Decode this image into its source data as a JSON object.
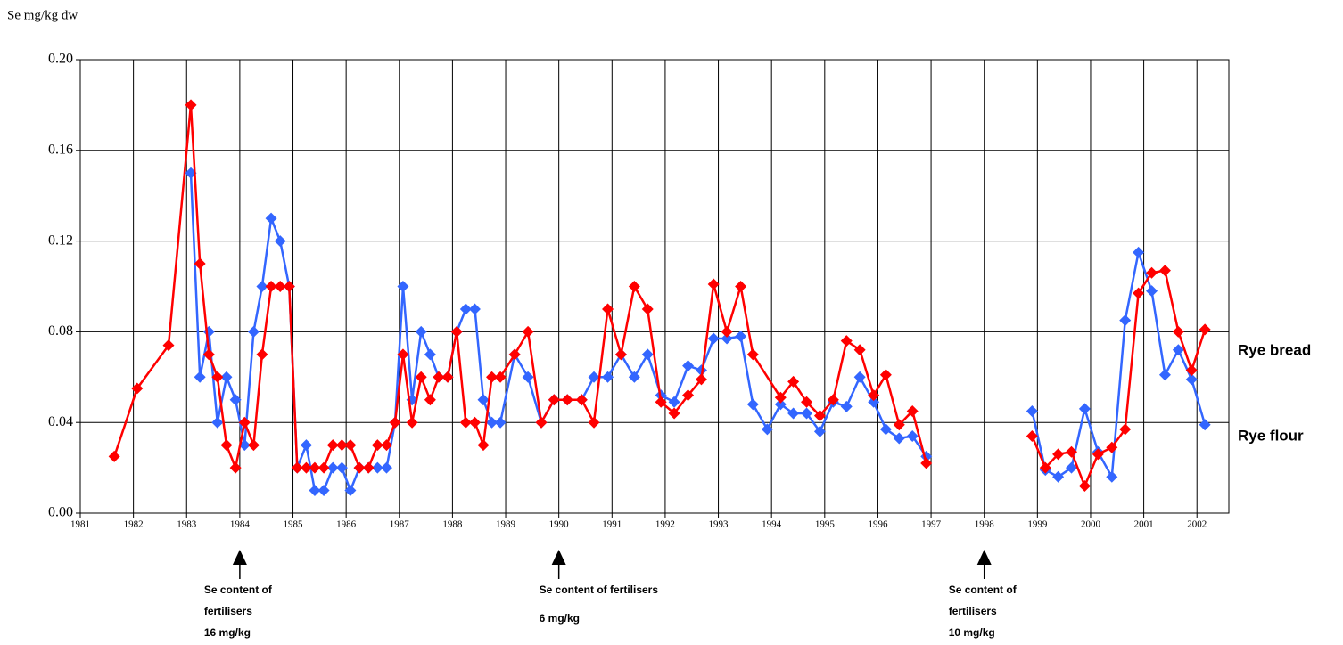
{
  "chart_data": {
    "type": "line",
    "y_axis_label": "Se mg/kg dw",
    "xlim": [
      1981,
      2002.6
    ],
    "xticks": [
      1981,
      1982,
      1983,
      1984,
      1985,
      1986,
      1987,
      1988,
      1989,
      1990,
      1991,
      1992,
      1993,
      1994,
      1995,
      1996,
      1997,
      1998,
      1999,
      2000,
      2001,
      2002
    ],
    "ylim": [
      0,
      0.2
    ],
    "yticks": [
      {
        "value": 0,
        "label": "0.00"
      },
      {
        "value": 0.04,
        "label": "0.04"
      },
      {
        "value": 0.08,
        "label": "0.08"
      },
      {
        "value": 0.12,
        "label": "0.12"
      },
      {
        "value": 0.16,
        "label": "0.16"
      },
      {
        "value": 0.2,
        "label": "0.20"
      }
    ],
    "grid": true,
    "series": [
      {
        "name": "Rye flour",
        "color": "#3366ff",
        "x": [
          1983.08,
          1983.25,
          1983.42,
          1983.58,
          1983.75,
          1983.92,
          1984.09,
          1984.26,
          1984.42,
          1984.59,
          1984.76,
          1984.93,
          1985.08,
          1985.25,
          1985.41,
          1985.58,
          1985.75,
          1985.92,
          1986.08,
          1986.25,
          1986.42,
          1986.59,
          1986.76,
          1986.92,
          1987.07,
          1987.24,
          1987.41,
          1987.58,
          1987.74,
          1987.91,
          1988.08,
          1988.25,
          1988.42,
          1988.58,
          1988.74,
          1988.9,
          1989.17,
          1989.42,
          1989.67,
          1989.91,
          1990.16,
          1990.43,
          1990.66,
          1990.92,
          1991.17,
          1991.42,
          1991.67,
          1991.92,
          1992.17,
          1992.43,
          1992.68,
          1992.91,
          1993.16,
          1993.42,
          1993.65,
          1993.92,
          1994.17,
          1994.41,
          1994.66,
          1994.91,
          1995.16,
          1995.41,
          1995.66,
          1995.92,
          1996.15,
          1996.4,
          1996.65,
          1996.91,
          null,
          1998.9,
          1999.15,
          1999.39,
          1999.64,
          1999.89,
          2000.14,
          2000.4,
          2000.65,
          2000.9,
          2001.15,
          2001.4,
          2001.65,
          2001.9,
          2002.15
        ],
        "values": [
          0.15,
          0.06,
          0.08,
          0.04,
          0.06,
          0.05,
          0.03,
          0.08,
          0.1,
          0.13,
          0.12,
          0.1,
          0.02,
          0.03,
          0.01,
          0.01,
          0.02,
          0.02,
          0.01,
          0.02,
          0.02,
          0.02,
          0.02,
          0.04,
          0.1,
          0.05,
          0.08,
          0.07,
          0.06,
          0.06,
          0.08,
          0.09,
          0.09,
          0.05,
          0.04,
          0.04,
          0.07,
          0.06,
          0.04,
          0.05,
          0.05,
          0.05,
          0.06,
          0.06,
          0.07,
          0.06,
          0.07,
          0.052,
          0.049,
          0.065,
          0.063,
          0.077,
          0.077,
          0.078,
          0.048,
          0.037,
          0.048,
          0.044,
          0.044,
          0.036,
          0.049,
          0.047,
          0.06,
          0.049,
          0.037,
          0.033,
          0.034,
          0.025,
          null,
          0.045,
          0.019,
          0.016,
          0.02,
          0.046,
          0.027,
          0.016,
          0.085,
          0.115,
          0.098,
          0.061,
          0.072,
          0.059,
          0.039
        ]
      },
      {
        "name": "Rye bread",
        "color": "#ff0000",
        "x": [
          1981.64,
          1982.07,
          1982.66,
          1983.08,
          1983.25,
          1983.42,
          1983.58,
          1983.75,
          1983.92,
          1984.09,
          1984.26,
          1984.42,
          1984.59,
          1984.76,
          1984.93,
          1985.08,
          1985.25,
          1985.41,
          1985.58,
          1985.75,
          1985.92,
          1986.08,
          1986.25,
          1986.42,
          1986.59,
          1986.76,
          1986.92,
          1987.07,
          1987.24,
          1987.41,
          1987.58,
          1987.74,
          1987.91,
          1988.08,
          1988.25,
          1988.42,
          1988.58,
          1988.74,
          1988.9,
          1989.17,
          1989.42,
          1989.67,
          1989.91,
          1990.16,
          1990.43,
          1990.66,
          1990.92,
          1991.17,
          1991.42,
          1991.67,
          1991.92,
          1992.17,
          1992.43,
          1992.68,
          1992.91,
          1993.16,
          1993.42,
          1993.65,
          1994.17,
          1994.41,
          1994.66,
          1994.91,
          1995.16,
          1995.41,
          1995.66,
          1995.92,
          1996.15,
          1996.4,
          1996.65,
          1996.91,
          null,
          1998.9,
          1999.15,
          1999.39,
          1999.64,
          1999.89,
          2000.14,
          2000.4,
          2000.65,
          2000.9,
          2001.15,
          2001.4,
          2001.65,
          2001.9,
          2002.15
        ],
        "values": [
          0.025,
          0.055,
          0.074,
          0.18,
          0.11,
          0.07,
          0.06,
          0.03,
          0.02,
          0.04,
          0.03,
          0.07,
          0.1,
          0.1,
          0.1,
          0.02,
          0.02,
          0.02,
          0.02,
          0.03,
          0.03,
          0.03,
          0.02,
          0.02,
          0.03,
          0.03,
          0.04,
          0.07,
          0.04,
          0.06,
          0.05,
          0.06,
          0.06,
          0.08,
          0.04,
          0.04,
          0.03,
          0.06,
          0.06,
          0.07,
          0.08,
          0.04,
          0.05,
          0.05,
          0.05,
          0.04,
          0.09,
          0.07,
          0.1,
          0.09,
          0.049,
          0.044,
          0.052,
          0.059,
          0.101,
          0.08,
          0.1,
          0.07,
          0.051,
          0.058,
          0.049,
          0.043,
          0.05,
          0.076,
          0.072,
          0.052,
          0.061,
          0.039,
          0.045,
          0.022,
          null,
          0.034,
          0.02,
          0.026,
          0.027,
          0.012,
          0.026,
          0.029,
          0.037,
          0.097,
          0.106,
          0.107,
          0.08,
          0.063,
          0.081
        ]
      }
    ],
    "annotations": [
      {
        "x": 1984,
        "lines": [
          "Se content of",
          "fertilisers",
          "16 mg/kg"
        ]
      },
      {
        "x": 1990,
        "lines": [
          "Se content of fertilisers",
          "6 mg/kg"
        ]
      },
      {
        "x": 1998,
        "lines": [
          "Se content of",
          "fertilisers",
          "10 mg/kg"
        ]
      }
    ]
  }
}
